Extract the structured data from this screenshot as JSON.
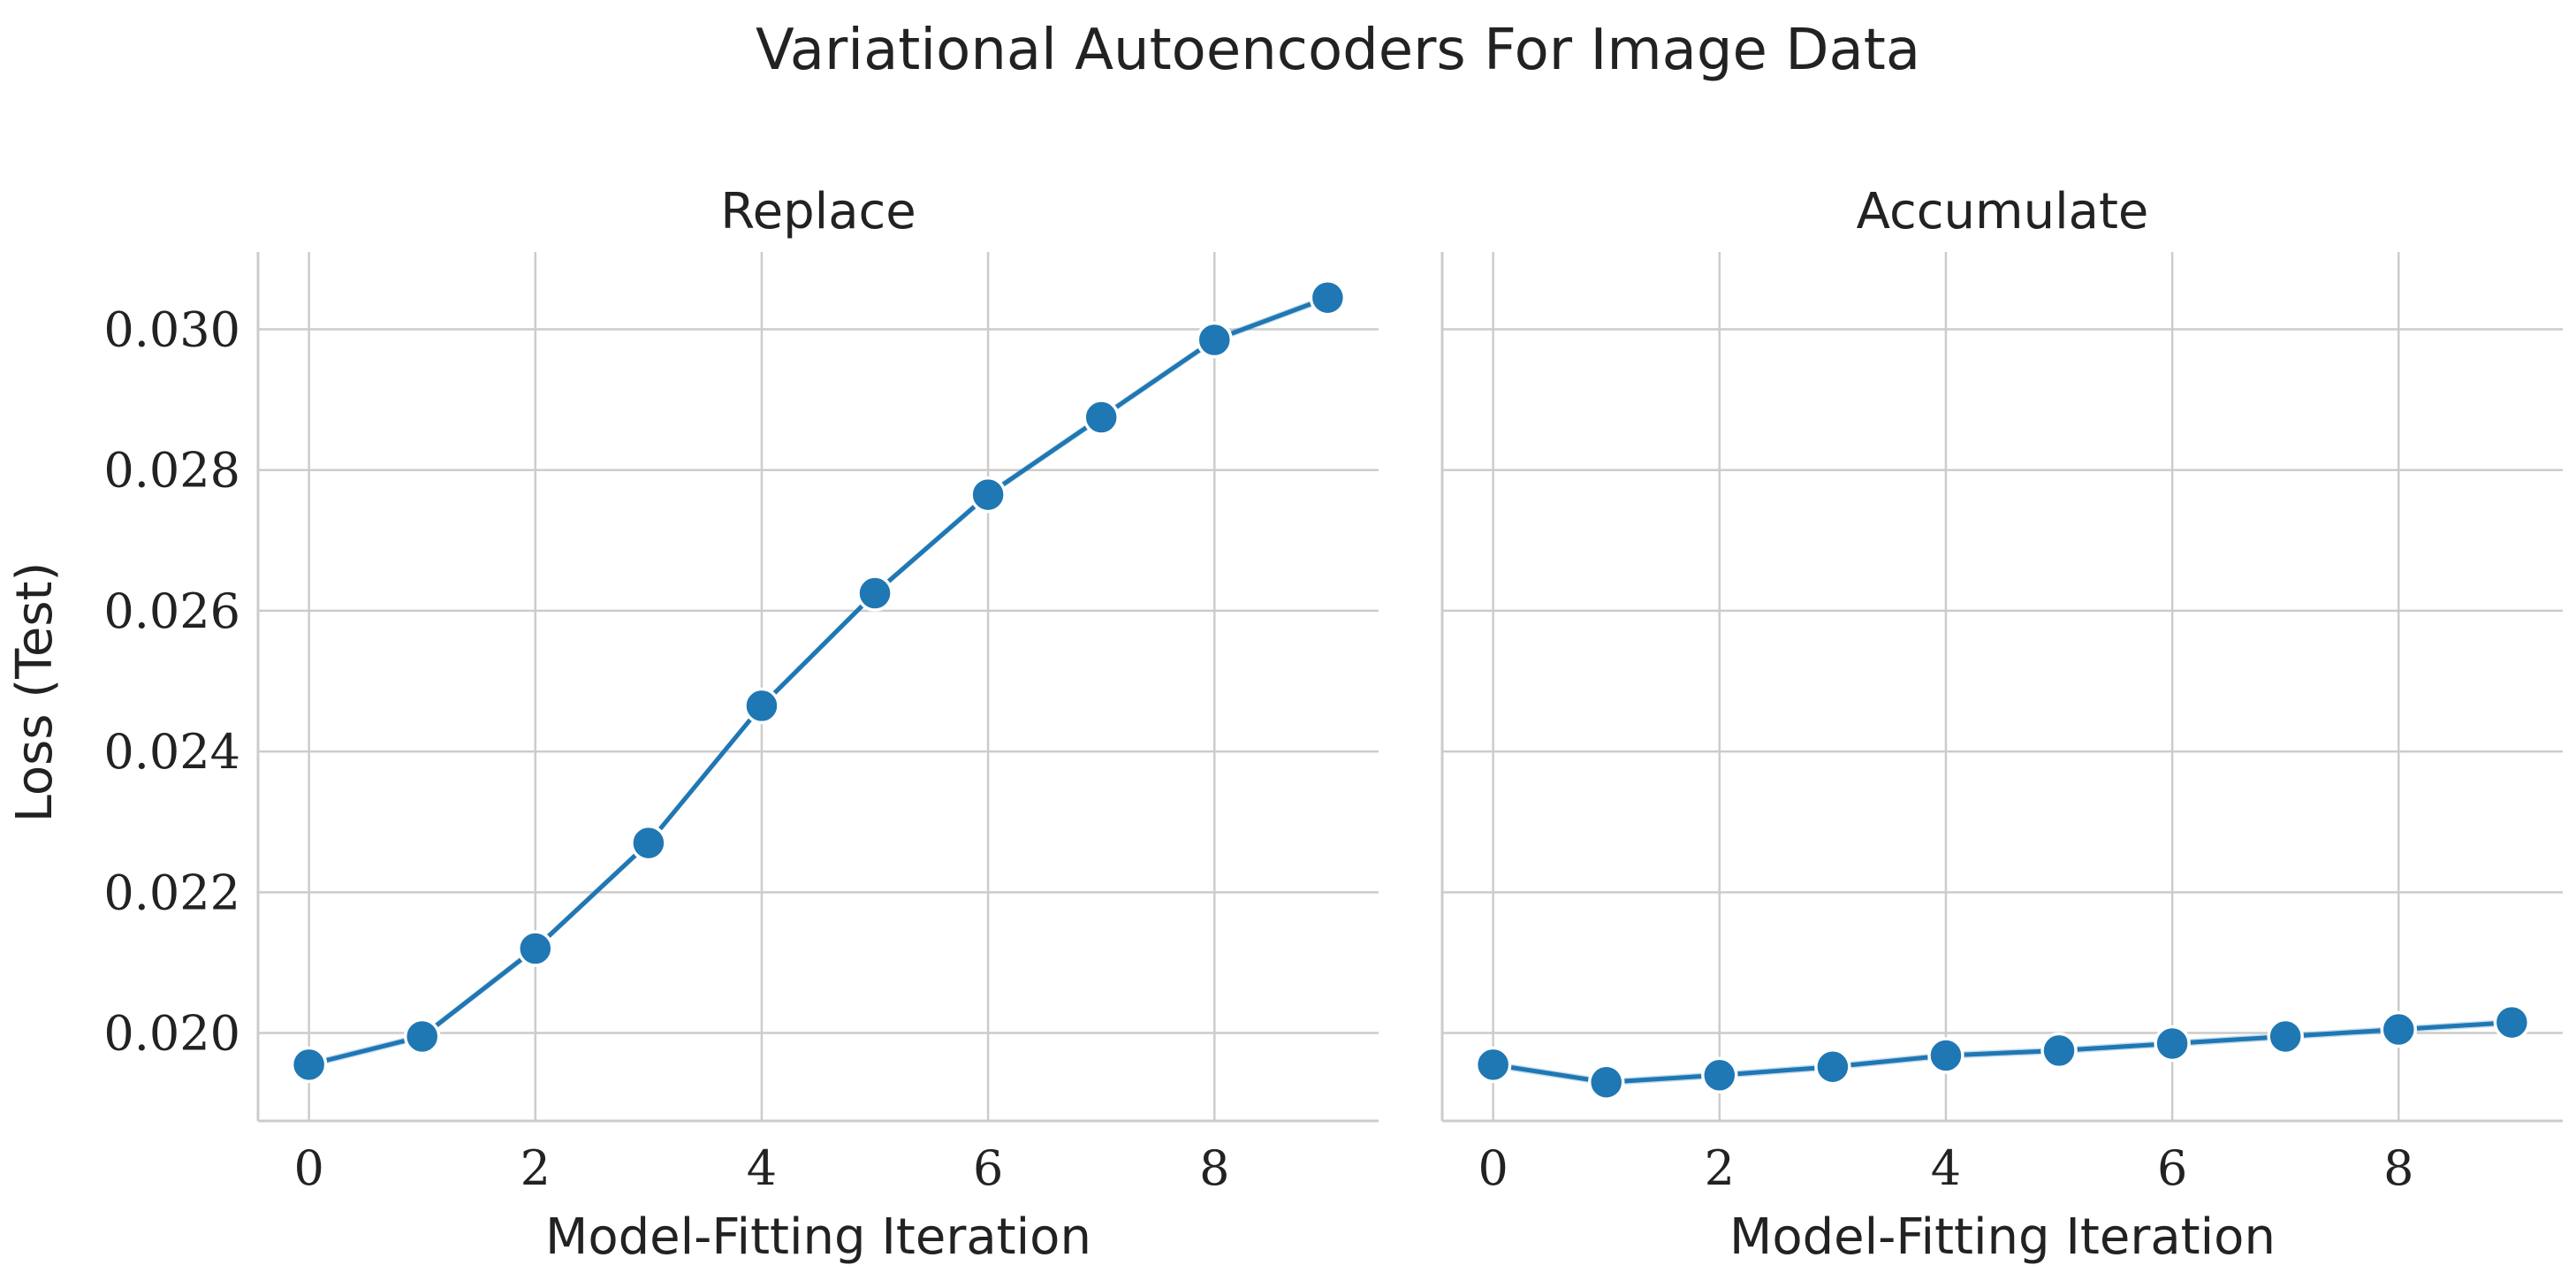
{
  "suptitle": "Variational Autoencoders For Image Data",
  "ylabel": "Loss (Test)",
  "colors": {
    "series": "#1f77b4",
    "grid": "#cccccc",
    "text": "#222222"
  },
  "chart_data": [
    {
      "type": "line",
      "title": "Replace",
      "xlabel": "Model-Fitting Iteration",
      "ylabel": "Loss (Test)",
      "x": [
        0,
        1,
        2,
        3,
        4,
        5,
        6,
        7,
        8,
        9
      ],
      "series": [
        {
          "values": [
            0.01955,
            0.01995,
            0.0212,
            0.0227,
            0.02465,
            0.02625,
            0.02765,
            0.02875,
            0.02985,
            0.03045
          ]
        }
      ],
      "xticks": [
        "0",
        "2",
        "4",
        "6",
        "8"
      ],
      "yticks": [
        "0.020",
        "0.022",
        "0.024",
        "0.026",
        "0.028",
        "0.030"
      ],
      "xlim": [
        -0.45,
        9.45
      ],
      "ylim": [
        0.01875,
        0.0311
      ],
      "grid": true,
      "legend": "none"
    },
    {
      "type": "line",
      "title": "Accumulate",
      "xlabel": "Model-Fitting Iteration",
      "ylabel": "",
      "x": [
        0,
        1,
        2,
        3,
        4,
        5,
        6,
        7,
        8,
        9
      ],
      "series": [
        {
          "values": [
            0.01955,
            0.0193,
            0.0194,
            0.01952,
            0.01968,
            0.01975,
            0.01985,
            0.01995,
            0.02005,
            0.02015
          ]
        }
      ],
      "xticks": [
        "0",
        "2",
        "4",
        "6",
        "8"
      ],
      "yticks": [],
      "xlim": [
        -0.45,
        9.45
      ],
      "ylim": [
        0.01875,
        0.0311
      ],
      "grid": true,
      "legend": "none"
    }
  ]
}
